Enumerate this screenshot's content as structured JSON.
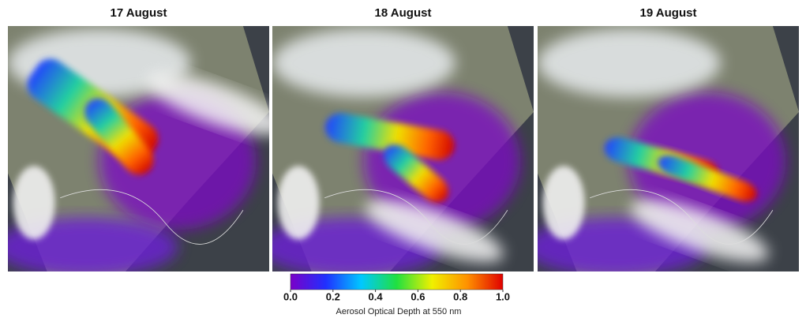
{
  "panels": [
    {
      "title": "17 August"
    },
    {
      "title": "18 August"
    },
    {
      "title": "19 August"
    }
  ],
  "colorbar": {
    "label": "Aerosol Optical Depth at 550 nm",
    "lim": [
      0,
      1
    ],
    "ticks": [
      {
        "value": 0,
        "label": "0.0"
      },
      {
        "value": 0.2,
        "label": "0.2"
      },
      {
        "value": 0.4,
        "label": "0.4"
      },
      {
        "value": 0.6,
        "label": "0.6"
      },
      {
        "value": 0.8,
        "label": "0.8"
      },
      {
        "value": 1,
        "label": "1.0"
      }
    ],
    "colors": [
      "#7a00c8",
      "#2030ff",
      "#00c8ff",
      "#20e040",
      "#f0f000",
      "#ff9000",
      "#e00000"
    ]
  }
}
